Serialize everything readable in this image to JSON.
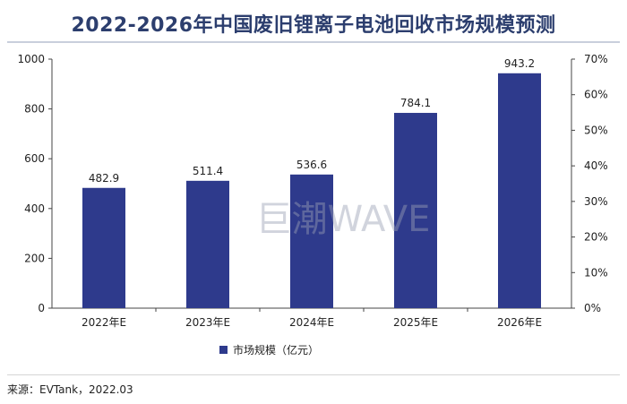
{
  "title": "2022-2026年中国废旧锂离子电池回收市场规模预测",
  "source": "来源：EVTank，2022.03",
  "watermark": "巨潮WAVE",
  "chart_data": {
    "type": "bar",
    "categories": [
      "2022年E",
      "2023年E",
      "2024年E",
      "2025年E",
      "2026年E"
    ],
    "series": [
      {
        "name": "市场规模（亿元）",
        "values": [
          482.9,
          511.4,
          536.6,
          784.1,
          943.2
        ],
        "color": "#2e3a8c"
      }
    ],
    "data_labels": [
      "482.9",
      "511.4",
      "536.6",
      "784.1",
      "943.2"
    ],
    "ylim": [
      0,
      1000
    ],
    "yticks": [
      "0",
      "200",
      "400",
      "600",
      "800",
      "1000"
    ],
    "y2lim": [
      0,
      70
    ],
    "y2ticks": [
      "0%",
      "10%",
      "20%",
      "30%",
      "40%",
      "50%",
      "60%",
      "70%"
    ],
    "grid": false,
    "legend": "bottom-center"
  }
}
